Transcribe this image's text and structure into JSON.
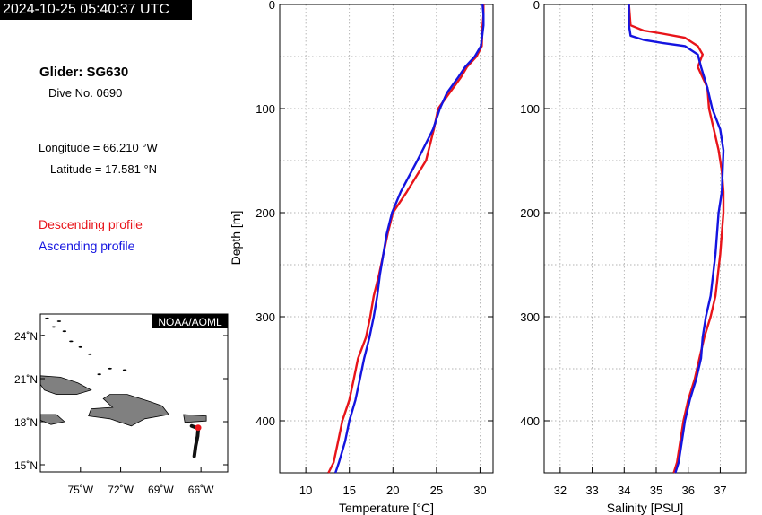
{
  "header": {
    "timestamp": "2024-10-25 05:40:37 UTC",
    "glider": "Glider: SG630",
    "dive": "Dive No. 0690",
    "longitude": "Longitude = 66.210 °W",
    "latitude": "Latitude = 17.581 °N",
    "descending_label": "Descending profile",
    "ascending_label": "Ascending profile"
  },
  "colors": {
    "descending": "#e8141a",
    "ascending": "#1414e0",
    "land": "#808080"
  },
  "map": {
    "credit": "NOAA/AOML",
    "lat_ticks": [
      "24˚N",
      "21˚N",
      "18˚N",
      "15˚N"
    ],
    "lon_ticks": [
      "75˚W",
      "72˚W",
      "69˚W",
      "66˚W"
    ],
    "extent": {
      "lon": [
        -78,
        -64
      ],
      "lat": [
        14.5,
        25.5
      ]
    },
    "lat_values": [
      24,
      21,
      18,
      15
    ],
    "lon_values": [
      -75,
      -72,
      -69,
      -66
    ],
    "glider_track": [
      [
        -66.7,
        17.7
      ],
      [
        -66.4,
        17.6
      ],
      [
        -66.2,
        17.58
      ],
      [
        -66.25,
        17.0
      ],
      [
        -66.4,
        16.3
      ],
      [
        -66.5,
        15.6
      ]
    ],
    "glider_position": [
      -66.21,
      17.581
    ]
  },
  "chart_data": [
    {
      "type": "line",
      "xlabel": "Temperature [°C]",
      "ylabel": "Depth [m]",
      "xlim": [
        7,
        31.5
      ],
      "ylim": [
        450,
        0
      ],
      "xticks": [
        10,
        15,
        20,
        25,
        30
      ],
      "yticks": [
        0,
        100,
        200,
        300,
        400
      ],
      "grid": true,
      "series": [
        {
          "name": "Descending profile",
          "x": [
            30.4,
            30.4,
            30.3,
            30.2,
            29.6,
            28.5,
            27.8,
            26.5,
            25.2,
            24.7,
            23.8,
            21.6,
            20.0,
            19.4,
            18.9,
            18.4,
            17.8,
            17.4,
            16.9,
            16.0,
            15.5,
            15.0,
            14.2,
            13.7,
            13.2,
            12.6
          ],
          "y": [
            0,
            10,
            20,
            40,
            50,
            60,
            70,
            85,
            100,
            120,
            150,
            180,
            200,
            220,
            240,
            260,
            280,
            300,
            320,
            340,
            360,
            380,
            400,
            420,
            440,
            450
          ]
        },
        {
          "name": "Ascending profile",
          "x": [
            30.3,
            30.4,
            30.4,
            30.1,
            29.4,
            28.3,
            27.5,
            26.2,
            25.4,
            24.6,
            22.8,
            20.9,
            19.9,
            19.3,
            18.9,
            18.5,
            18.2,
            17.8,
            17.3,
            16.7,
            16.2,
            15.7,
            15.0,
            14.5,
            13.8,
            13.4
          ],
          "y": [
            0,
            10,
            20,
            40,
            50,
            60,
            70,
            85,
            100,
            120,
            150,
            180,
            200,
            220,
            240,
            260,
            280,
            300,
            320,
            340,
            360,
            380,
            400,
            420,
            440,
            450
          ]
        }
      ]
    },
    {
      "type": "line",
      "xlabel": "Salinity [PSU]",
      "ylabel": "",
      "xlim": [
        31.5,
        37.8
      ],
      "ylim": [
        450,
        0
      ],
      "xticks": [
        32,
        33,
        34,
        35,
        36,
        37
      ],
      "yticks": [
        0,
        100,
        200,
        300,
        400
      ],
      "grid": true,
      "series": [
        {
          "name": "Descending profile",
          "x": [
            34.15,
            34.2,
            34.6,
            35.2,
            35.9,
            36.3,
            36.45,
            36.3,
            36.6,
            36.65,
            36.8,
            36.95,
            37.05,
            37.1,
            37.1,
            37.0,
            36.85,
            36.7,
            36.5,
            36.35,
            36.2,
            36.0,
            35.85,
            35.75,
            35.65,
            35.55
          ],
          "y": [
            0,
            20,
            25,
            28,
            32,
            40,
            48,
            60,
            80,
            100,
            120,
            140,
            160,
            180,
            200,
            240,
            280,
            300,
            320,
            340,
            360,
            380,
            400,
            420,
            440,
            450
          ]
        },
        {
          "name": "Ascending profile",
          "x": [
            34.15,
            34.15,
            34.2,
            34.6,
            35.2,
            35.9,
            36.3,
            36.4,
            36.6,
            36.75,
            37.0,
            37.1,
            37.05,
            36.95,
            36.85,
            36.7,
            36.55,
            36.45,
            36.4,
            36.25,
            36.05,
            35.9,
            35.8,
            35.7,
            35.6
          ],
          "y": [
            0,
            20,
            30,
            34,
            37,
            40,
            48,
            60,
            80,
            100,
            120,
            140,
            180,
            200,
            240,
            280,
            300,
            320,
            340,
            360,
            380,
            400,
            420,
            440,
            450
          ]
        }
      ]
    }
  ]
}
